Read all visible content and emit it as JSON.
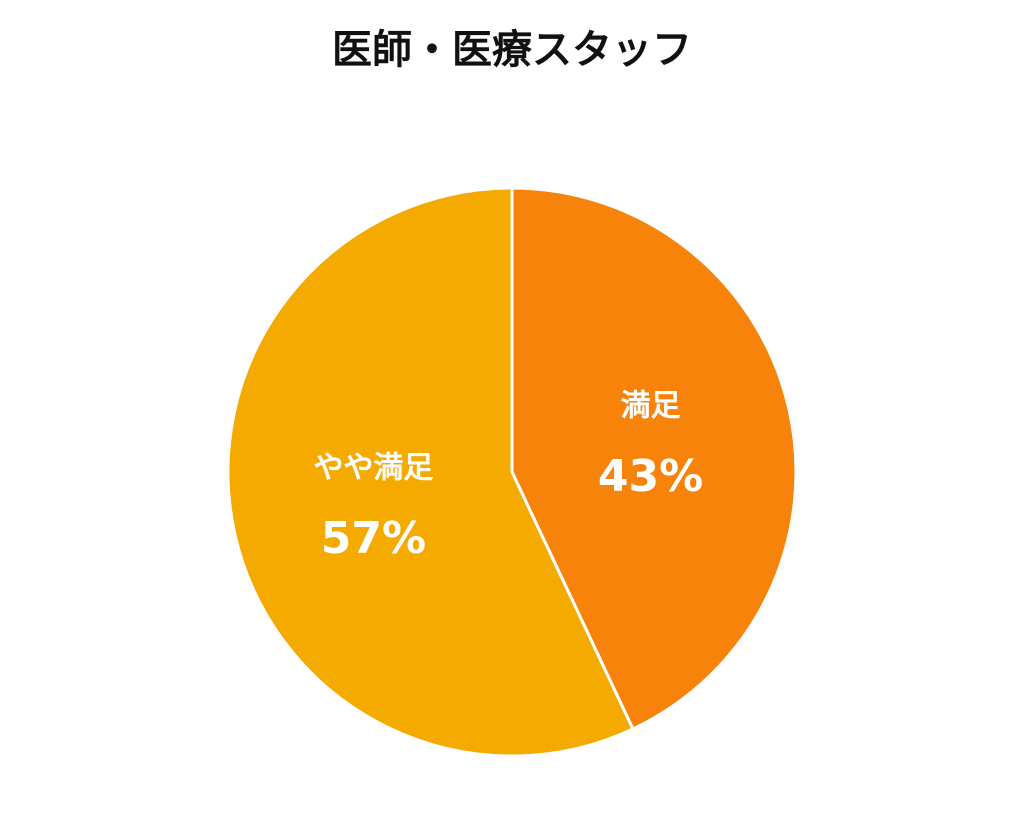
{
  "chart_data": {
    "type": "pie",
    "title": "医師・医療スタッフ",
    "categories": [
      "満足",
      "やや満足"
    ],
    "values": [
      43,
      57
    ],
    "value_labels": [
      "43%",
      "57%"
    ],
    "colors": [
      "#f8830a",
      "#f5aa00"
    ]
  }
}
